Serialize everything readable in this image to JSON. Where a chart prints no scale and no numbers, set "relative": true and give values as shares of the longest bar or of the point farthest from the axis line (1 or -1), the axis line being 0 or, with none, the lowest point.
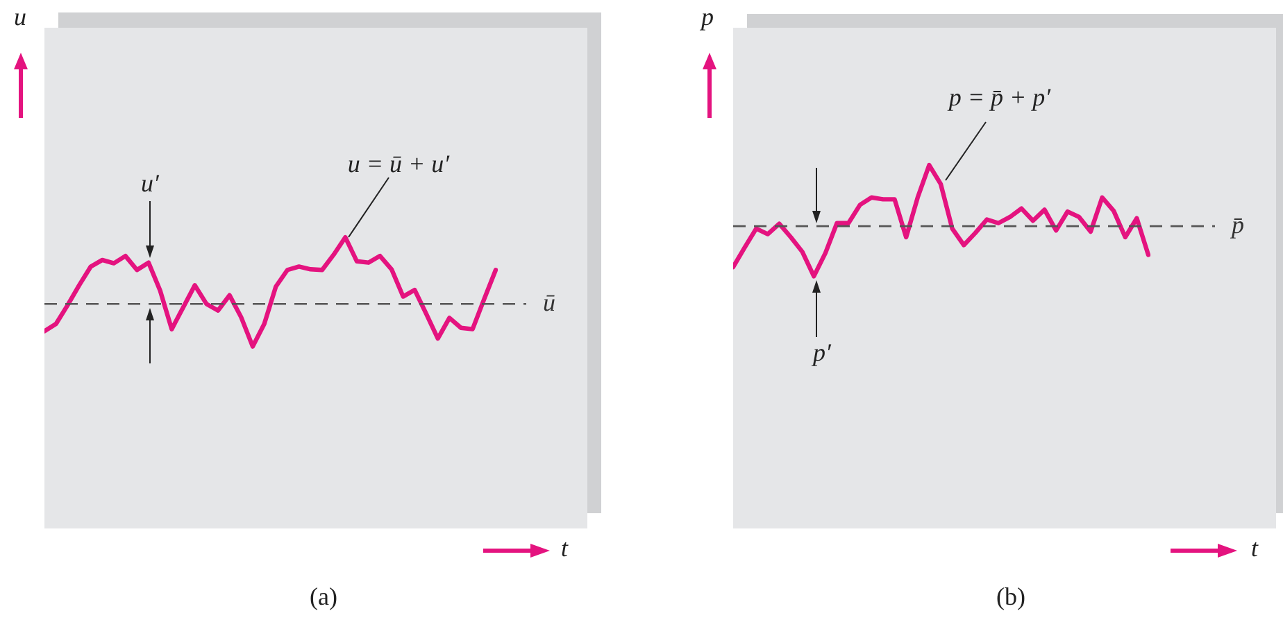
{
  "chart_data": [
    {
      "type": "line",
      "title": "(a)",
      "xlabel": "t",
      "ylabel": "u",
      "relative": true,
      "marker": "none",
      "categories": [
        null,
        null,
        null,
        null,
        null,
        null,
        null,
        null,
        null,
        null,
        null,
        null,
        null,
        null,
        null,
        null,
        null,
        null,
        null,
        null,
        null,
        null,
        null,
        null,
        null,
        null,
        null,
        null,
        null,
        null,
        null,
        null,
        null,
        null,
        null,
        null,
        null,
        null,
        null,
        null
      ],
      "series": [
        {
          "color": "#e4137f",
          "values": [
            -0.41,
            -0.3,
            -0.02,
            0.28,
            0.56,
            0.66,
            0.61,
            0.72,
            0.51,
            0.62,
            0.2,
            -0.38,
            -0.05,
            0.28,
            0,
            -0.1,
            0.13,
            -0.2,
            -0.64,
            -0.3,
            0.26,
            0.51,
            0.56,
            0.52,
            0.51,
            0.74,
            1,
            0.64,
            0.62,
            0.72,
            0.52,
            0.11,
            0.21,
            -0.15,
            -0.52,
            -0.21,
            -0.36,
            -0.38,
            0.07,
            0.51
          ]
        }
      ],
      "ref_lines": [
        {
          "axis": "y",
          "value": 0,
          "label": "ū",
          "color": "#555555",
          "line_style": "dashed"
        }
      ],
      "annotations": [
        "u = ū + u′",
        "u′"
      ]
    },
    {
      "type": "line",
      "title": "(b)",
      "xlabel": "t",
      "ylabel": "p",
      "relative": true,
      "marker": "none",
      "categories": [
        null,
        null,
        null,
        null,
        null,
        null,
        null,
        null,
        null,
        null,
        null,
        null,
        null,
        null,
        null,
        null,
        null,
        null,
        null,
        null,
        null,
        null,
        null,
        null,
        null,
        null,
        null,
        null,
        null,
        null,
        null,
        null,
        null,
        null,
        null,
        null,
        null
      ],
      "series": [
        {
          "color": "#e4137f",
          "values": [
            -0.67,
            -0.35,
            -0.04,
            -0.13,
            0.04,
            -0.18,
            -0.42,
            -0.82,
            -0.44,
            0.05,
            0.05,
            0.35,
            0.47,
            0.44,
            0.44,
            -0.18,
            0.47,
            1,
            0.69,
            -0.04,
            -0.31,
            -0.11,
            0.11,
            0.05,
            0.15,
            0.29,
            0.09,
            0.27,
            -0.07,
            0.24,
            0.15,
            -0.09,
            0.47,
            0.25,
            -0.18,
            0.13,
            -0.47
          ]
        }
      ],
      "ref_lines": [
        {
          "axis": "y",
          "value": 0,
          "label": "p̄",
          "color": "#555555",
          "line_style": "dashed"
        }
      ],
      "annotations": [
        "p = p̄ + p′",
        "p′"
      ]
    }
  ]
}
